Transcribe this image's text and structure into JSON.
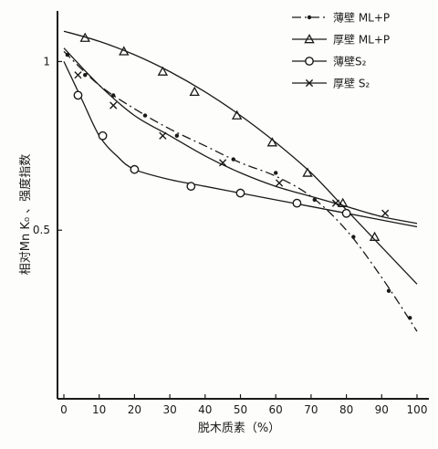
{
  "chart_data": {
    "type": "line",
    "title": "",
    "xlabel": "脱木质素（%）",
    "ylabel": "相对Mn K₀ 、强度指数",
    "xlim": [
      0,
      100
    ],
    "ylim": [
      0,
      1.15
    ],
    "xticks": [
      "0",
      "10",
      "20",
      "30",
      "40",
      "50",
      "60",
      "70",
      "80",
      "90",
      "100"
    ],
    "yticks": [
      {
        "value": 0.5,
        "label": "0.5"
      },
      {
        "value": 1.0,
        "label": "1"
      }
    ],
    "grid": false,
    "legend_position": "top-right",
    "series": [
      {
        "name": "薄壁 ML+P",
        "line_style": "dashdot",
        "marker": "dot",
        "color": "#1a1a1a",
        "x": [
          0,
          10,
          20,
          30,
          40,
          50,
          60,
          70,
          80,
          90,
          100
        ],
        "y": [
          1.03,
          0.93,
          0.86,
          0.8,
          0.75,
          0.7,
          0.66,
          0.6,
          0.5,
          0.36,
          0.2
        ],
        "marker_x": [
          1,
          6,
          14,
          23,
          32,
          48,
          60,
          71,
          82,
          92,
          98
        ],
        "marker_y": [
          1.02,
          0.96,
          0.9,
          0.84,
          0.78,
          0.71,
          0.67,
          0.59,
          0.48,
          0.32,
          0.24
        ]
      },
      {
        "name": "厚壁 ML+P",
        "line_style": "solid",
        "marker": "triangle",
        "color": "#1a1a1a",
        "x": [
          0,
          10,
          20,
          30,
          40,
          50,
          60,
          70,
          80,
          90,
          100
        ],
        "y": [
          1.09,
          1.06,
          1.02,
          0.97,
          0.91,
          0.84,
          0.76,
          0.67,
          0.56,
          0.45,
          0.34
        ],
        "marker_x": [
          6,
          17,
          28,
          37,
          49,
          59,
          69,
          79,
          88
        ],
        "marker_y": [
          1.07,
          1.03,
          0.97,
          0.91,
          0.84,
          0.76,
          0.67,
          0.58,
          0.48
        ]
      },
      {
        "name": "薄壁S₂",
        "line_style": "solid",
        "marker": "circle",
        "color": "#1a1a1a",
        "x": [
          0,
          5,
          10,
          15,
          20,
          30,
          40,
          50,
          60,
          70,
          80,
          90,
          100
        ],
        "y": [
          1.0,
          0.89,
          0.78,
          0.72,
          0.68,
          0.65,
          0.63,
          0.61,
          0.59,
          0.57,
          0.55,
          0.53,
          0.51
        ],
        "marker_x": [
          4,
          11,
          20,
          36,
          50,
          66,
          80
        ],
        "marker_y": [
          0.9,
          0.78,
          0.68,
          0.63,
          0.61,
          0.58,
          0.55
        ]
      },
      {
        "name": "厚壁 S₂",
        "line_style": "solid",
        "marker": "x",
        "color": "#1a1a1a",
        "x": [
          0,
          10,
          20,
          30,
          40,
          50,
          60,
          70,
          80,
          90,
          100
        ],
        "y": [
          1.04,
          0.93,
          0.84,
          0.78,
          0.72,
          0.67,
          0.63,
          0.6,
          0.57,
          0.54,
          0.52
        ],
        "marker_x": [
          4,
          14,
          28,
          45,
          61,
          77,
          91
        ],
        "marker_y": [
          0.96,
          0.87,
          0.78,
          0.7,
          0.64,
          0.58,
          0.55
        ]
      }
    ]
  }
}
